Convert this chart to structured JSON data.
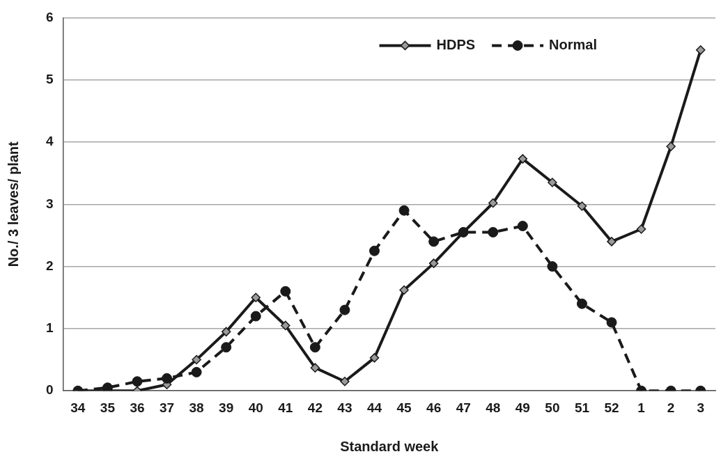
{
  "chart_data": {
    "type": "line",
    "xlabel": "Standard week",
    "ylabel": "No./ 3 leaves/ plant",
    "categories": [
      "34",
      "35",
      "36",
      "37",
      "38",
      "39",
      "40",
      "41",
      "42",
      "43",
      "44",
      "45",
      "46",
      "47",
      "48",
      "49",
      "50",
      "51",
      "52",
      "1",
      "2",
      "3"
    ],
    "series": [
      {
        "name": "HDPS",
        "color": "#1a1a1a",
        "marker": "diamond",
        "line_style": "solid",
        "values": [
          0,
          0,
          0,
          0.1,
          0.5,
          0.95,
          1.5,
          1.05,
          0.37,
          0.15,
          0.53,
          1.62,
          2.05,
          2.55,
          3.02,
          3.73,
          3.35,
          2.97,
          2.4,
          2.6,
          3.93,
          5.48
        ]
      },
      {
        "name": "Normal",
        "color": "#1a1a1a",
        "marker": "circle",
        "line_style": "dashed",
        "values": [
          0,
          0.05,
          0.15,
          0.2,
          0.3,
          0.7,
          1.2,
          1.6,
          0.7,
          1.3,
          2.25,
          2.9,
          2.4,
          2.55,
          2.55,
          2.65,
          2.0,
          1.4,
          1.1,
          0,
          0,
          0
        ]
      }
    ],
    "ylim": [
      0,
      6
    ],
    "yticks": [
      0,
      1,
      2,
      3,
      4,
      5,
      6
    ],
    "grid": "y",
    "legend": "top right"
  }
}
